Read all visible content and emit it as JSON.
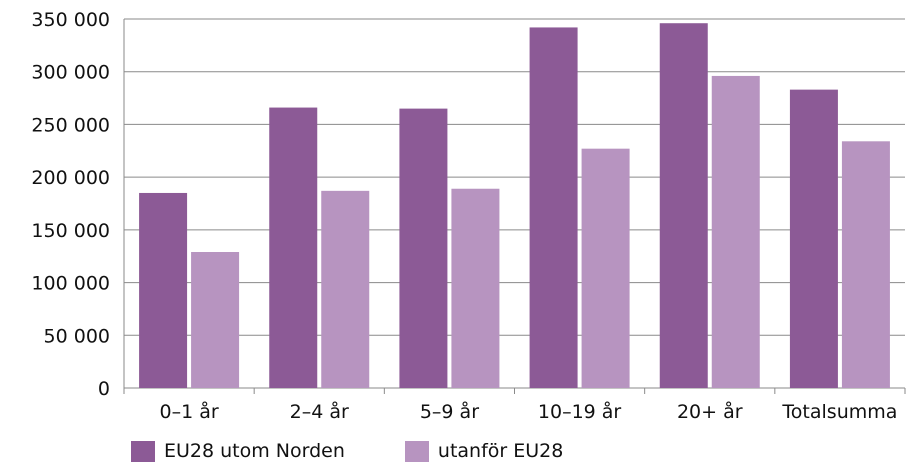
{
  "chart_data": {
    "type": "bar",
    "categories": [
      "0–1 år",
      "2–4 år",
      "5–9 år",
      "10–19 år",
      "20+ år",
      "Totalsumma"
    ],
    "series": [
      {
        "name": "EU28 utom Norden",
        "color": "#8c5a96",
        "values": [
          185000,
          266000,
          265000,
          342000,
          346000,
          283000
        ]
      },
      {
        "name": "utanför EU28",
        "color": "#b794c0",
        "values": [
          129000,
          187000,
          189000,
          227000,
          296000,
          234000
        ]
      }
    ],
    "y_ticks": [
      {
        "value": 0,
        "label": "0"
      },
      {
        "value": 50000,
        "label": "50 000"
      },
      {
        "value": 100000,
        "label": "100 000"
      },
      {
        "value": 150000,
        "label": "150 000"
      },
      {
        "value": 200000,
        "label": "200 000"
      },
      {
        "value": 250000,
        "label": "250 000"
      },
      {
        "value": 300000,
        "label": "300 000"
      },
      {
        "value": 350000,
        "label": "350 000"
      }
    ],
    "ylim": [
      0,
      350000
    ],
    "grid": true,
    "legend_position": "bottom-left",
    "title": "",
    "xlabel": "",
    "ylabel": ""
  }
}
